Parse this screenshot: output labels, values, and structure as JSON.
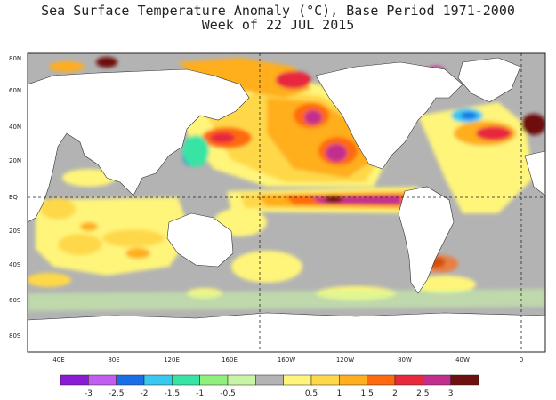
{
  "title_line1": "Sea Surface Temperature Anomaly (°C), Base Period 1971-2000",
  "title_line2": "Week of 22 JUL 2015",
  "lat_labels": [
    "80N",
    "60N",
    "40N",
    "20N",
    "EQ",
    "20S",
    "40S",
    "60S",
    "80S"
  ],
  "lon_labels": [
    "40E",
    "80E",
    "120E",
    "160E",
    "160W",
    "120W",
    "80W",
    "40W",
    "0"
  ],
  "legend_labels": [
    "-3",
    "-2.5",
    "-2",
    "-1.5",
    "-1",
    "-0.5",
    "0.5",
    "1",
    "1.5",
    "2",
    "2.5",
    "3"
  ],
  "colors": {
    "ocean_neutral": "#b3b3b3",
    "land": "#ffffff",
    "anomaly_scale": [
      "#8a1bd6",
      "#c15ef0",
      "#1a6ee8",
      "#38c8f0",
      "#38e4a4",
      "#8ff07e",
      "#c8f5a5",
      "#b3b3b3",
      "#fff57a",
      "#ffd84a",
      "#ffae1f",
      "#ff6a10",
      "#e8283c",
      "#c22e8e",
      "#6e1010"
    ]
  }
}
